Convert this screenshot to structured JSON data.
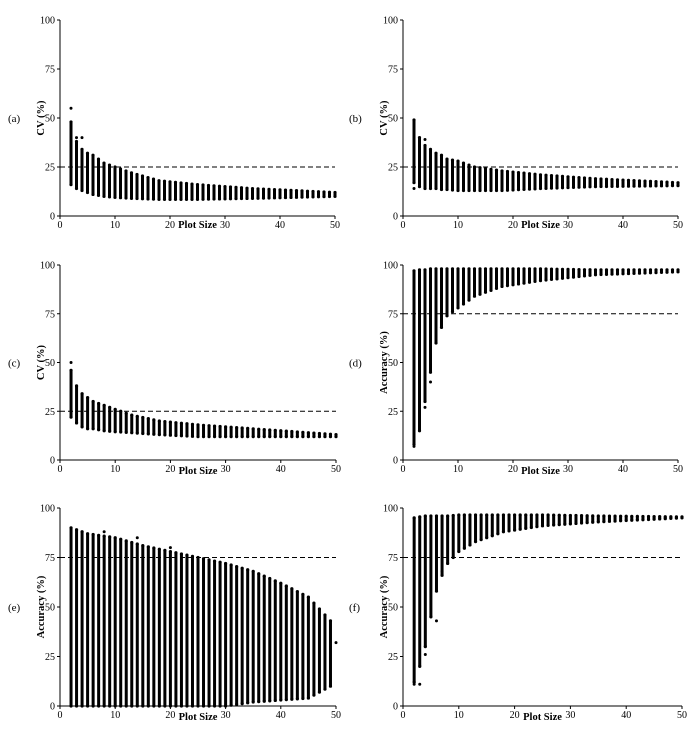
{
  "chart_data": [
    {
      "type": "scatter",
      "panel_label": "(a)",
      "xlabel": "Plot Size",
      "ylabel": "CV (%)",
      "xlim": [
        0,
        50
      ],
      "ylim": [
        0,
        100
      ],
      "xticks": [
        "0",
        "10",
        "20",
        "30",
        "40",
        "50"
      ],
      "yticks": [
        "0",
        "25",
        "50",
        "75",
        "100"
      ],
      "reference_line_y": 25,
      "x_range": [
        2,
        50
      ],
      "series": [
        {
          "x": [
            2,
            3,
            4,
            5,
            6,
            7,
            8,
            10,
            13,
            18,
            25,
            35,
            50
          ],
          "y_min": [
            16,
            14,
            13,
            12,
            11,
            10.5,
            10,
            9.5,
            9,
            8.5,
            8.5,
            9,
            10
          ],
          "y_max": [
            48,
            38,
            34,
            32,
            31,
            29,
            27,
            25,
            22,
            18,
            16,
            14,
            12
          ]
        }
      ],
      "outliers": [
        {
          "x": 2,
          "y": 55
        },
        {
          "x": 3,
          "y": 40
        },
        {
          "x": 4,
          "y": 40
        }
      ]
    },
    {
      "type": "scatter",
      "panel_label": "(b)",
      "xlabel": "Plot Size",
      "ylabel": "CV (%)",
      "xlim": [
        0,
        50
      ],
      "ylim": [
        0,
        100
      ],
      "xticks": [
        "0",
        "10",
        "20",
        "30",
        "40",
        "50"
      ],
      "yticks": [
        "0",
        "25",
        "50",
        "75",
        "100"
      ],
      "reference_line_y": 25,
      "x_range": [
        2,
        50
      ],
      "series": [
        {
          "x": [
            2,
            3,
            4,
            5,
            6,
            7,
            8,
            10,
            13,
            18,
            25,
            35,
            50
          ],
          "y_min": [
            17,
            15,
            14,
            14,
            14,
            13.5,
            13.5,
            13,
            13,
            13,
            14,
            15,
            15.5
          ],
          "y_max": [
            49,
            40,
            36,
            34,
            32,
            31,
            29,
            28,
            25,
            23,
            21,
            19,
            17
          ]
        }
      ],
      "outliers": [
        {
          "x": 2,
          "y": 14
        },
        {
          "x": 4,
          "y": 39
        }
      ]
    },
    {
      "type": "scatter",
      "panel_label": "(c)",
      "xlabel": "Plot Size",
      "ylabel": "CV (%)",
      "xlim": [
        0,
        50
      ],
      "ylim": [
        0,
        100
      ],
      "xticks": [
        "0",
        "10",
        "20",
        "30",
        "40",
        "50"
      ],
      "yticks": [
        "0",
        "25",
        "50",
        "75",
        "100"
      ],
      "reference_line_y": 25,
      "x_range": [
        2,
        50
      ],
      "series": [
        {
          "x": [
            2,
            3,
            4,
            5,
            6,
            7,
            8,
            10,
            13,
            18,
            25,
            35,
            50
          ],
          "y_min": [
            22,
            19,
            17,
            16,
            16,
            15.5,
            15,
            14.5,
            14,
            13,
            12,
            12,
            12
          ],
          "y_max": [
            46,
            38,
            34,
            32,
            30,
            29,
            28,
            26,
            23,
            20,
            18,
            16,
            13
          ]
        }
      ],
      "outliers": [
        {
          "x": 2,
          "y": 50
        }
      ]
    },
    {
      "type": "scatter",
      "panel_label": "(d)",
      "xlabel": "Plot Size",
      "ylabel": "Accuracy (%)",
      "xlim": [
        0,
        50
      ],
      "ylim": [
        0,
        100
      ],
      "xticks": [
        "0",
        "10",
        "20",
        "30",
        "40",
        "50"
      ],
      "yticks": [
        "0",
        "25",
        "50",
        "75",
        "100"
      ],
      "reference_line_y": 75,
      "x_range": [
        2,
        50
      ],
      "series": [
        {
          "x": [
            2,
            3,
            4,
            5,
            6,
            7,
            8,
            10,
            13,
            18,
            25,
            35,
            50
          ],
          "y_min": [
            8,
            15,
            30,
            45,
            60,
            68,
            74,
            78,
            84,
            89,
            92,
            95,
            96.5
          ],
          "y_max": [
            97,
            97.5,
            97.5,
            98,
            98,
            98,
            98,
            98,
            98,
            98,
            98,
            97.5,
            97.5
          ]
        }
      ],
      "outliers": [
        {
          "x": 2,
          "y": 7
        },
        {
          "x": 4,
          "y": 27
        },
        {
          "x": 5,
          "y": 40
        },
        {
          "x": 6,
          "y": 65
        },
        {
          "x": 7,
          "y": 68
        },
        {
          "x": 8,
          "y": 74
        }
      ]
    },
    {
      "type": "scatter",
      "panel_label": "(e)",
      "xlabel": "Plot Size",
      "ylabel": "Accuracy (%)",
      "xlim": [
        0,
        50
      ],
      "ylim": [
        0,
        100
      ],
      "xticks": [
        "0",
        "10",
        "20",
        "30",
        "40",
        "50"
      ],
      "yticks": [
        "0",
        "25",
        "50",
        "75",
        "100"
      ],
      "reference_line_y": 75,
      "x_range": [
        2,
        49
      ],
      "series": [
        {
          "x": [
            2,
            5,
            10,
            15,
            20,
            25,
            30,
            35,
            40,
            45,
            49
          ],
          "y_min": [
            0,
            0,
            0,
            0,
            0,
            0,
            0,
            2,
            3,
            4,
            10
          ],
          "y_max": [
            90,
            87,
            85,
            81,
            78,
            75,
            72,
            68,
            62,
            55,
            43
          ]
        }
      ],
      "outliers": [
        {
          "x": 8,
          "y": 88
        },
        {
          "x": 14,
          "y": 85
        },
        {
          "x": 20,
          "y": 80
        },
        {
          "x": 50,
          "y": 32
        }
      ]
    },
    {
      "type": "scatter",
      "panel_label": "(f)",
      "xlabel": "Plot Size",
      "ylabel": "Accuracy (%)",
      "xlim": [
        0,
        50
      ],
      "ylim": [
        0,
        100
      ],
      "xticks": [
        "0",
        "10",
        "20",
        "30",
        "40",
        "50"
      ],
      "yticks": [
        "0",
        "25",
        "50",
        "75",
        "100"
      ],
      "reference_line_y": 75,
      "x_range": [
        2,
        50
      ],
      "series": [
        {
          "x": [
            2,
            3,
            4,
            5,
            6,
            7,
            8,
            10,
            13,
            18,
            25,
            35,
            50
          ],
          "y_min": [
            12,
            20,
            30,
            45,
            58,
            66,
            72,
            78,
            83,
            88,
            91,
            93,
            95
          ],
          "y_max": [
            95,
            95.5,
            96,
            96,
            96,
            96,
            96,
            96.5,
            96.5,
            96.5,
            96.5,
            96,
            95.5
          ]
        }
      ],
      "outliers": [
        {
          "x": 2,
          "y": 11
        },
        {
          "x": 3,
          "y": 11
        },
        {
          "x": 4,
          "y": 26
        },
        {
          "x": 6,
          "y": 43
        },
        {
          "x": 7,
          "y": 68
        }
      ]
    }
  ]
}
